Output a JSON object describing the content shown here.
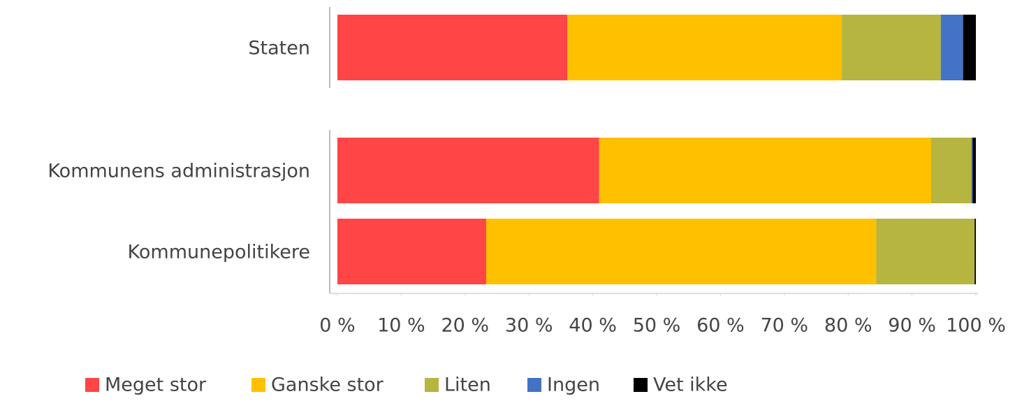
{
  "chart_data": {
    "type": "stacked-barh",
    "categories": [
      "Staten",
      "Kommunens administrasjon",
      "Kommunepolitikere"
    ],
    "series": [
      {
        "name": "Meget stor",
        "color": "#ff4545",
        "values": [
          36,
          41,
          23.3
        ]
      },
      {
        "name": "Ganske stor",
        "color": "#ffc000",
        "values": [
          43,
          52,
          61.1
        ]
      },
      {
        "name": "Liten",
        "color": "#b5b540",
        "values": [
          15.5,
          6.3,
          15.4
        ]
      },
      {
        "name": "Ingen",
        "color": "#4472c4",
        "values": [
          3.5,
          0.2,
          0
        ]
      },
      {
        "name": "Vet ikke",
        "color": "#000000",
        "values": [
          2,
          0.5,
          0.2
        ]
      }
    ],
    "xlim": [
      0,
      100
    ],
    "xticks": [
      {
        "value": 0,
        "label": "0 %"
      },
      {
        "value": 10,
        "label": "10 %"
      },
      {
        "value": 20,
        "label": "20 %"
      },
      {
        "value": 30,
        "label": "30 %"
      },
      {
        "value": 40,
        "label": "40 %"
      },
      {
        "value": 50,
        "label": "50 %"
      },
      {
        "value": 60,
        "label": "60 %"
      },
      {
        "value": 70,
        "label": "70 %"
      },
      {
        "value": 80,
        "label": "80 %"
      },
      {
        "value": 90,
        "label": "90 %"
      },
      {
        "value": 100,
        "label": "100 %"
      }
    ],
    "legend": "bottom"
  }
}
